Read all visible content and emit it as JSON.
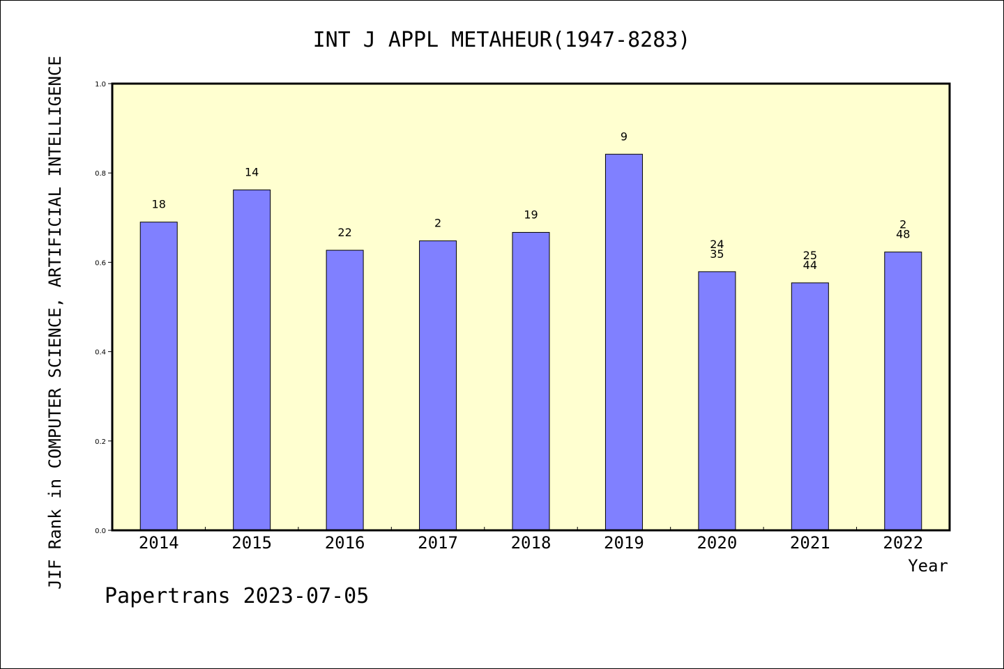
{
  "chart_data": {
    "type": "bar",
    "title": "INT J APPL METAHEUR(1947-8283)",
    "xlabel": "Year",
    "ylabel": "JIF Rank in COMPUTER SCIENCE, ARTIFICIAL INTELLIGENCE",
    "ylim": [
      0,
      1.0
    ],
    "yticks": [
      "0.0",
      "0.2",
      "0.4",
      "0.6",
      "0.8",
      "1.0"
    ],
    "categories": [
      "2014",
      "2015",
      "2016",
      "2017",
      "2018",
      "2019",
      "2020",
      "2021",
      "2022"
    ],
    "values": [
      0.69,
      0.762,
      0.627,
      0.648,
      0.667,
      0.842,
      0.579,
      0.554,
      0.623
    ],
    "bar_labels": [
      [
        "18"
      ],
      [
        "14"
      ],
      [
        "22"
      ],
      [
        "2"
      ],
      [
        "19"
      ],
      [
        "9"
      ],
      [
        "24",
        "35"
      ],
      [
        "25",
        "44"
      ],
      [
        "2",
        "48"
      ]
    ],
    "grid": false,
    "colors": {
      "bar_fill": "#8080ff",
      "plot_background": "#ffffd0",
      "axis": "#000000"
    }
  },
  "footer": {
    "credit": "Papertrans 2023-07-05"
  }
}
